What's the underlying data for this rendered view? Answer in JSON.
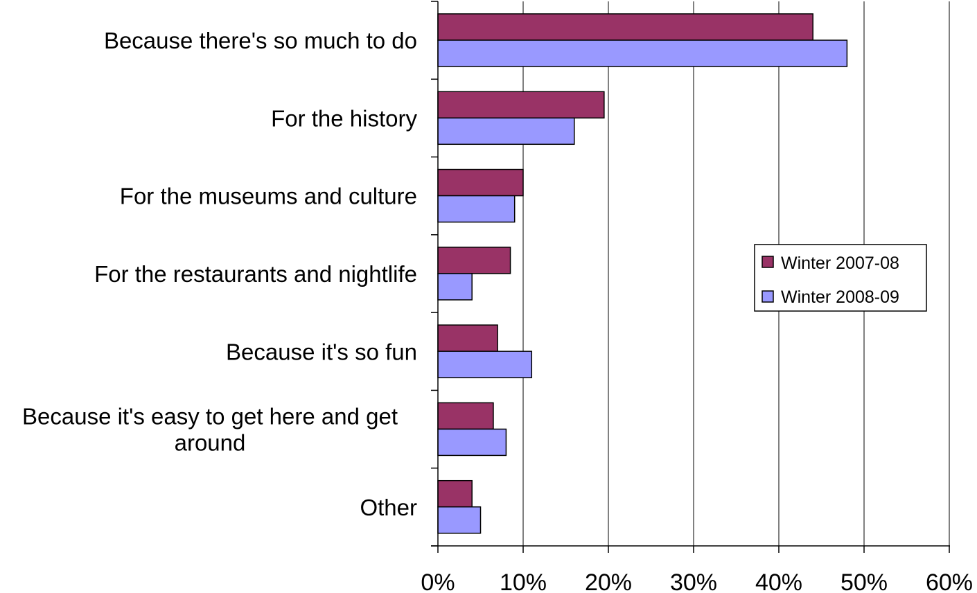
{
  "chart_data": {
    "type": "bar",
    "orientation": "horizontal",
    "title": "",
    "xlabel": "",
    "ylabel": "",
    "categories": [
      "Because there's so much to do",
      "For the history",
      "For the museums and culture",
      "For the restaurants and nightlife",
      "Because it's so fun",
      "Because it's easy to get here and get around",
      "Other"
    ],
    "category_lines": [
      [
        "Because there's so much to do"
      ],
      [
        "For the history"
      ],
      [
        "For the museums and culture"
      ],
      [
        "For the restaurants and nightlife"
      ],
      [
        "Because it's so fun"
      ],
      [
        "Because it's easy to get here and get",
        "around"
      ],
      [
        "Other"
      ]
    ],
    "series": [
      {
        "name": "Winter 2007-08",
        "color": "#993366",
        "values": [
          44,
          19.5,
          10,
          8.5,
          7,
          6.5,
          4
        ]
      },
      {
        "name": "Winter 2008-09",
        "color": "#9999ff",
        "values": [
          48,
          16,
          9,
          4,
          11,
          8,
          5
        ]
      }
    ],
    "xlim": [
      0,
      60
    ],
    "x_ticks": [
      0,
      10,
      20,
      30,
      40,
      50,
      60
    ],
    "x_tick_labels": [
      "0%",
      "10%",
      "20%",
      "30%",
      "40%",
      "50%",
      "60%"
    ],
    "grid": "vertical",
    "legend_position": "right"
  }
}
